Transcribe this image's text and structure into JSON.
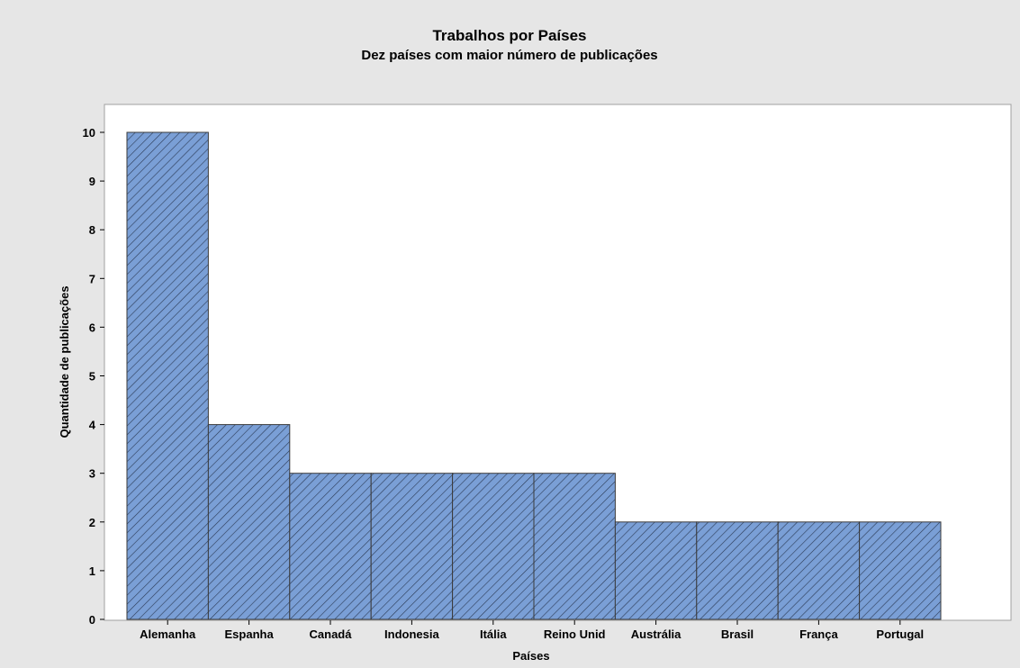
{
  "chart_data": {
    "type": "bar",
    "title": "Trabalhos por Países",
    "subtitle": "Dez países com maior número de publicações",
    "xlabel": "Países",
    "ylabel": "Quantidade de publicações",
    "categories": [
      "Alemanha",
      "Espanha",
      "Canadá",
      "Indonesia",
      "Itália",
      "Reino Unid",
      "Austrália",
      "Brasil",
      "França",
      "Portugal"
    ],
    "values": [
      10,
      4,
      3,
      3,
      3,
      3,
      2,
      2,
      2,
      2
    ],
    "ylim": [
      0,
      10
    ],
    "yticks": [
      0,
      1,
      2,
      3,
      4,
      5,
      6,
      7,
      8,
      9,
      10
    ],
    "bar_fill": "#7a9fd6",
    "bar_hatch": "#2b3a55",
    "bar_stroke": "#3b3b3b",
    "grid": false
  }
}
